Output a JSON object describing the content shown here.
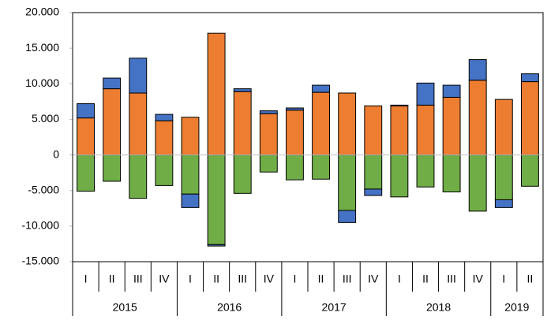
{
  "chart_data": {
    "type": "stacked_bar",
    "categories": [
      {
        "group": "2015",
        "label": "I"
      },
      {
        "group": "2015",
        "label": "II"
      },
      {
        "group": "2015",
        "label": "III"
      },
      {
        "group": "2015",
        "label": "IV"
      },
      {
        "group": "2016",
        "label": "I"
      },
      {
        "group": "2016",
        "label": "II"
      },
      {
        "group": "2016",
        "label": "III"
      },
      {
        "group": "2016",
        "label": "IV"
      },
      {
        "group": "2017",
        "label": "I"
      },
      {
        "group": "2017",
        "label": "II"
      },
      {
        "group": "2017",
        "label": "III"
      },
      {
        "group": "2017",
        "label": "IV"
      },
      {
        "group": "2018",
        "label": "I"
      },
      {
        "group": "2018",
        "label": "II"
      },
      {
        "group": "2018",
        "label": "III"
      },
      {
        "group": "2018",
        "label": "IV"
      },
      {
        "group": "2019",
        "label": "I"
      },
      {
        "group": "2019",
        "label": "II"
      }
    ],
    "series": [
      {
        "color": "#ED7D31",
        "values": [
          5200,
          9300,
          8700,
          4800,
          5300,
          17100,
          8900,
          5800,
          6300,
          8800,
          8700,
          6900,
          6900,
          7000,
          8100,
          10500,
          7800,
          10300
        ]
      },
      {
        "color": "#70AD47",
        "values": [
          -5100,
          -3700,
          -6100,
          -4300,
          -5500,
          -12600,
          -5400,
          -2400,
          -3500,
          -3400,
          -7800,
          -4800,
          -5900,
          -4500,
          -5200,
          -7900,
          -6300,
          -4400
        ]
      },
      {
        "color": "#4472C4",
        "values": [
          2000,
          1500,
          4900,
          900,
          -1900,
          -200,
          400,
          400,
          300,
          1000,
          -1700,
          -900,
          100,
          3100,
          1700,
          2900,
          -1100,
          1100
        ]
      }
    ],
    "ylim": [
      -15000,
      20000
    ],
    "yticks": [
      {
        "value": -15000,
        "label": "-15.000"
      },
      {
        "value": -10000,
        "label": "-10.000"
      },
      {
        "value": -5000,
        "label": "-5.000"
      },
      0,
      {
        "value": 5000,
        "label": "5.000"
      },
      {
        "value": 10000,
        "label": "10.000"
      },
      {
        "value": 15000,
        "label": "15.000"
      },
      {
        "value": 20000,
        "label": "20.000"
      }
    ]
  }
}
